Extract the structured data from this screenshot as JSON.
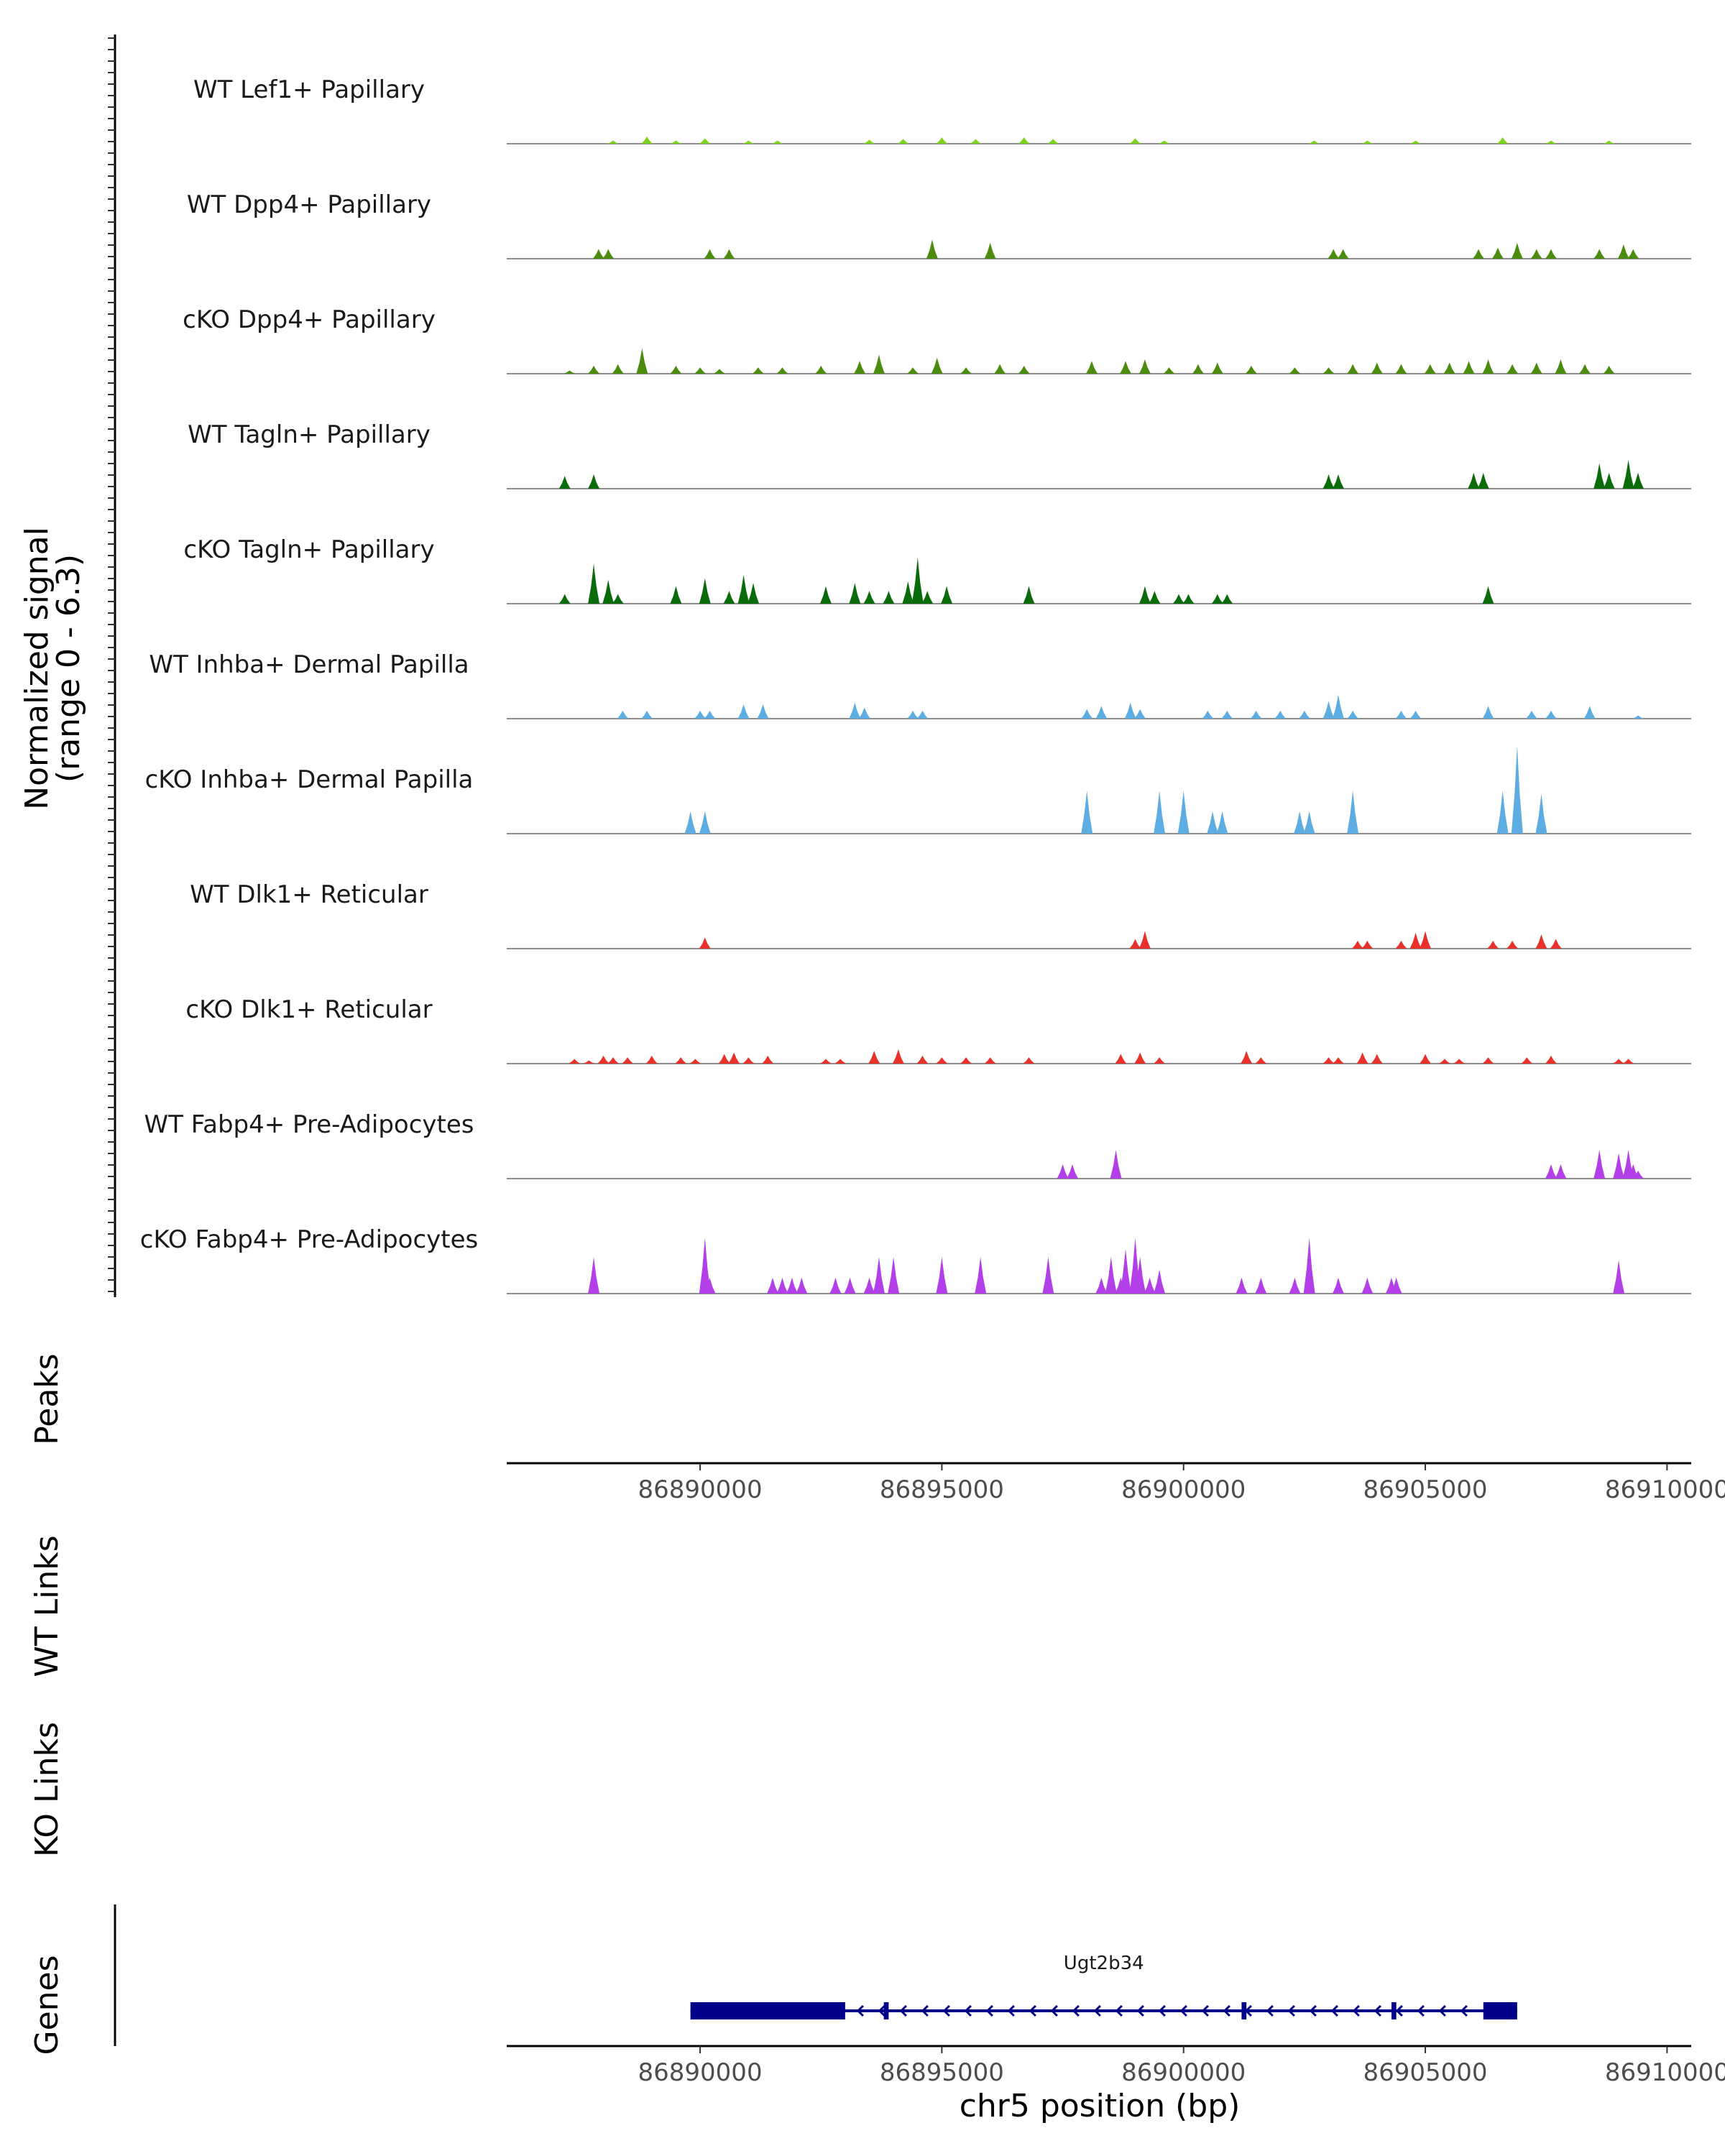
{
  "chart_data": {
    "type": "genome_coverage",
    "title": "",
    "xlabel": "chr5 position (bp)",
    "ylabel": "Normalized signal\n(range 0 - 6.3)",
    "y_range": [
      0,
      6.3
    ],
    "region": {
      "chrom": "chr5",
      "start": 86886000,
      "end": 86910500
    },
    "x_ticks": [
      86890000,
      86895000,
      86900000,
      86905000,
      86910000
    ],
    "x_tick_labels": [
      "86890000",
      "86895000",
      "86900000",
      "86905000",
      "86910000"
    ],
    "tracks": [
      {
        "name": "WT Lef1+ Papillary",
        "color": "#7FD320",
        "peaks": [
          [
            86888200,
            0.2
          ],
          [
            86888900,
            0.45
          ],
          [
            86889500,
            0.2
          ],
          [
            86890100,
            0.35
          ],
          [
            86891000,
            0.2
          ],
          [
            86891600,
            0.2
          ],
          [
            86893500,
            0.25
          ],
          [
            86894200,
            0.3
          ],
          [
            86895000,
            0.4
          ],
          [
            86895700,
            0.3
          ],
          [
            86896700,
            0.4
          ],
          [
            86897300,
            0.3
          ],
          [
            86899000,
            0.35
          ],
          [
            86899600,
            0.2
          ],
          [
            86902700,
            0.2
          ],
          [
            86903800,
            0.2
          ],
          [
            86904800,
            0.2
          ],
          [
            86906600,
            0.4
          ],
          [
            86907600,
            0.2
          ],
          [
            86908800,
            0.2
          ]
        ]
      },
      {
        "name": "WT Dpp4+ Papillary",
        "color": "#4B8B0E",
        "peaks": [
          [
            86887900,
            0.6
          ],
          [
            86888100,
            0.6
          ],
          [
            86890200,
            0.6
          ],
          [
            86890600,
            0.6
          ],
          [
            86894800,
            1.2
          ],
          [
            86896000,
            1.0
          ],
          [
            86903100,
            0.6
          ],
          [
            86903300,
            0.6
          ],
          [
            86906100,
            0.6
          ],
          [
            86906500,
            0.7
          ],
          [
            86906900,
            1.0
          ],
          [
            86907300,
            0.6
          ],
          [
            86907600,
            0.6
          ],
          [
            86908600,
            0.6
          ],
          [
            86909100,
            0.9
          ],
          [
            86909300,
            0.6
          ]
        ]
      },
      {
        "name": "cKO Dpp4+ Papillary",
        "color": "#4B8B0E",
        "peaks": [
          [
            86887300,
            0.2
          ],
          [
            86887800,
            0.5
          ],
          [
            86888300,
            0.6
          ],
          [
            86888800,
            1.6
          ],
          [
            86889500,
            0.5
          ],
          [
            86890000,
            0.4
          ],
          [
            86890400,
            0.3
          ],
          [
            86891200,
            0.4
          ],
          [
            86891700,
            0.4
          ],
          [
            86892500,
            0.5
          ],
          [
            86893300,
            0.8
          ],
          [
            86893700,
            1.2
          ],
          [
            86894400,
            0.4
          ],
          [
            86894900,
            1.0
          ],
          [
            86895500,
            0.4
          ],
          [
            86896200,
            0.6
          ],
          [
            86896700,
            0.5
          ],
          [
            86898100,
            0.8
          ],
          [
            86898800,
            0.8
          ],
          [
            86899200,
            0.9
          ],
          [
            86899700,
            0.4
          ],
          [
            86900300,
            0.6
          ],
          [
            86900700,
            0.7
          ],
          [
            86901400,
            0.5
          ],
          [
            86902300,
            0.4
          ],
          [
            86903000,
            0.4
          ],
          [
            86903500,
            0.6
          ],
          [
            86904000,
            0.7
          ],
          [
            86904500,
            0.6
          ],
          [
            86905100,
            0.6
          ],
          [
            86905500,
            0.7
          ],
          [
            86905900,
            0.8
          ],
          [
            86906300,
            0.9
          ],
          [
            86906800,
            0.6
          ],
          [
            86907300,
            0.7
          ],
          [
            86907800,
            0.9
          ],
          [
            86908300,
            0.6
          ],
          [
            86908800,
            0.5
          ]
        ]
      },
      {
        "name": "WT Tagln+ Papillary",
        "color": "#0A6B0A",
        "peaks": [
          [
            86887200,
            0.8
          ],
          [
            86887800,
            0.9
          ],
          [
            86903000,
            0.9
          ],
          [
            86903200,
            0.9
          ],
          [
            86906000,
            1.0
          ],
          [
            86906200,
            1.0
          ],
          [
            86908600,
            1.6
          ],
          [
            86908800,
            1.0
          ],
          [
            86909200,
            1.8
          ],
          [
            86909400,
            1.0
          ]
        ]
      },
      {
        "name": "cKO Tagln+ Papillary",
        "color": "#0A6B0A",
        "peaks": [
          [
            86887200,
            0.6
          ],
          [
            86887800,
            2.5
          ],
          [
            86888100,
            1.5
          ],
          [
            86888300,
            0.6
          ],
          [
            86889500,
            1.1
          ],
          [
            86890100,
            1.6
          ],
          [
            86890600,
            0.8
          ],
          [
            86890900,
            1.8
          ],
          [
            86891100,
            1.3
          ],
          [
            86892600,
            1.1
          ],
          [
            86893200,
            1.3
          ],
          [
            86893500,
            0.8
          ],
          [
            86893900,
            0.8
          ],
          [
            86894300,
            1.4
          ],
          [
            86894500,
            2.9
          ],
          [
            86894700,
            0.8
          ],
          [
            86895100,
            1.1
          ],
          [
            86896800,
            1.1
          ],
          [
            86899200,
            1.1
          ],
          [
            86899400,
            0.8
          ],
          [
            86899900,
            0.6
          ],
          [
            86900100,
            0.6
          ],
          [
            86900700,
            0.6
          ],
          [
            86900900,
            0.6
          ],
          [
            86906300,
            1.1
          ]
        ]
      },
      {
        "name": "WT Inhba+ Dermal Papilla",
        "color": "#5DADE2",
        "peaks": [
          [
            86888400,
            0.5
          ],
          [
            86888900,
            0.5
          ],
          [
            86890000,
            0.5
          ],
          [
            86890200,
            0.5
          ],
          [
            86890900,
            0.9
          ],
          [
            86891300,
            0.9
          ],
          [
            86893200,
            1.0
          ],
          [
            86893400,
            0.7
          ],
          [
            86894400,
            0.5
          ],
          [
            86894600,
            0.5
          ],
          [
            86898000,
            0.6
          ],
          [
            86898300,
            0.8
          ],
          [
            86898900,
            1.0
          ],
          [
            86899100,
            0.6
          ],
          [
            86900500,
            0.5
          ],
          [
            86900900,
            0.5
          ],
          [
            86901500,
            0.5
          ],
          [
            86902000,
            0.5
          ],
          [
            86902500,
            0.5
          ],
          [
            86903000,
            1.1
          ],
          [
            86903200,
            1.5
          ],
          [
            86903500,
            0.5
          ],
          [
            86904500,
            0.5
          ],
          [
            86904800,
            0.5
          ],
          [
            86906300,
            0.8
          ],
          [
            86907200,
            0.5
          ],
          [
            86907600,
            0.5
          ],
          [
            86908400,
            0.8
          ],
          [
            86909400,
            0.2
          ]
        ]
      },
      {
        "name": "cKO Inhba+ Dermal Papilla",
        "color": "#5DADE2",
        "peaks": [
          [
            86889800,
            1.4
          ],
          [
            86890100,
            1.4
          ],
          [
            86898000,
            2.7
          ],
          [
            86899500,
            2.7
          ],
          [
            86900000,
            2.7
          ],
          [
            86900600,
            1.4
          ],
          [
            86900800,
            1.4
          ],
          [
            86902400,
            1.4
          ],
          [
            86902600,
            1.4
          ],
          [
            86903500,
            2.7
          ],
          [
            86906600,
            2.7
          ],
          [
            86906900,
            5.5
          ],
          [
            86907400,
            2.5
          ]
        ]
      },
      {
        "name": "WT Dlk1+ Reticular",
        "color": "#E8312A",
        "peaks": [
          [
            86890100,
            0.7
          ],
          [
            86899000,
            0.6
          ],
          [
            86899200,
            1.1
          ],
          [
            86903600,
            0.5
          ],
          [
            86903800,
            0.5
          ],
          [
            86904500,
            0.5
          ],
          [
            86904800,
            1.0
          ],
          [
            86905000,
            1.1
          ],
          [
            86906400,
            0.5
          ],
          [
            86906800,
            0.5
          ],
          [
            86907400,
            0.9
          ],
          [
            86907700,
            0.6
          ]
        ]
      },
      {
        "name": "cKO Dlk1+ Reticular",
        "color": "#E8312A",
        "peaks": [
          [
            86887400,
            0.3
          ],
          [
            86887700,
            0.2
          ],
          [
            86888000,
            0.5
          ],
          [
            86888200,
            0.4
          ],
          [
            86888500,
            0.4
          ],
          [
            86889000,
            0.5
          ],
          [
            86889600,
            0.4
          ],
          [
            86889900,
            0.3
          ],
          [
            86890500,
            0.6
          ],
          [
            86890700,
            0.7
          ],
          [
            86891000,
            0.4
          ],
          [
            86891400,
            0.5
          ],
          [
            86892600,
            0.3
          ],
          [
            86892900,
            0.3
          ],
          [
            86893600,
            0.8
          ],
          [
            86894100,
            0.9
          ],
          [
            86894600,
            0.5
          ],
          [
            86895000,
            0.4
          ],
          [
            86895500,
            0.4
          ],
          [
            86896000,
            0.4
          ],
          [
            86896800,
            0.4
          ],
          [
            86898700,
            0.6
          ],
          [
            86899100,
            0.7
          ],
          [
            86899500,
            0.4
          ],
          [
            86901300,
            0.8
          ],
          [
            86901600,
            0.4
          ],
          [
            86903000,
            0.4
          ],
          [
            86903200,
            0.4
          ],
          [
            86903700,
            0.7
          ],
          [
            86904000,
            0.6
          ],
          [
            86905000,
            0.6
          ],
          [
            86905400,
            0.3
          ],
          [
            86905700,
            0.3
          ],
          [
            86906300,
            0.4
          ],
          [
            86907100,
            0.4
          ],
          [
            86907600,
            0.5
          ],
          [
            86909000,
            0.3
          ],
          [
            86909200,
            0.3
          ]
        ]
      },
      {
        "name": "WT Fabp4+ Pre-Adipocytes",
        "color": "#B23FE8",
        "peaks": [
          [
            86897500,
            0.9
          ],
          [
            86897700,
            0.9
          ],
          [
            86898600,
            1.8
          ],
          [
            86907600,
            0.9
          ],
          [
            86907800,
            0.9
          ],
          [
            86908600,
            1.8
          ],
          [
            86909000,
            1.6
          ],
          [
            86909200,
            1.8
          ],
          [
            86909300,
            0.9
          ],
          [
            86909400,
            0.5
          ]
        ]
      },
      {
        "name": "cKO Fabp4+ Pre-Adipocytes",
        "color": "#B23FE8",
        "peaks": [
          [
            86887800,
            2.3
          ],
          [
            86890100,
            3.5
          ],
          [
            86890200,
            1.0
          ],
          [
            86891500,
            1.0
          ],
          [
            86891700,
            1.0
          ],
          [
            86891900,
            1.0
          ],
          [
            86892100,
            1.0
          ],
          [
            86892800,
            1.0
          ],
          [
            86893100,
            1.0
          ],
          [
            86893500,
            1.0
          ],
          [
            86893700,
            2.3
          ],
          [
            86894000,
            2.3
          ],
          [
            86895000,
            2.3
          ],
          [
            86895800,
            2.3
          ],
          [
            86897200,
            2.3
          ],
          [
            86898300,
            1.0
          ],
          [
            86898500,
            2.3
          ],
          [
            86898700,
            1.0
          ],
          [
            86898800,
            2.8
          ],
          [
            86899000,
            3.5
          ],
          [
            86899100,
            2.3
          ],
          [
            86899300,
            1.0
          ],
          [
            86899500,
            1.5
          ],
          [
            86901200,
            1.0
          ],
          [
            86901600,
            1.0
          ],
          [
            86902300,
            1.0
          ],
          [
            86902600,
            3.5
          ],
          [
            86903200,
            1.0
          ],
          [
            86903800,
            1.0
          ],
          [
            86904300,
            1.0
          ],
          [
            86904400,
            1.0
          ],
          [
            86909000,
            2.1
          ]
        ]
      }
    ],
    "panels": {
      "peaks_label": "Peaks",
      "wt_links_label": "WT Links",
      "ko_links_label": "KO Links",
      "genes_label": "Genes"
    },
    "gene": {
      "name": "Ugt2b34",
      "start": 86889800,
      "end": 86906900,
      "strand": "-",
      "color": "#00008B",
      "thick_blocks": [
        [
          86889800,
          86893000
        ],
        [
          86893800,
          86893900
        ],
        [
          86901200,
          86901300
        ],
        [
          86904300,
          86904400
        ],
        [
          86906200,
          86906900
        ]
      ]
    }
  }
}
